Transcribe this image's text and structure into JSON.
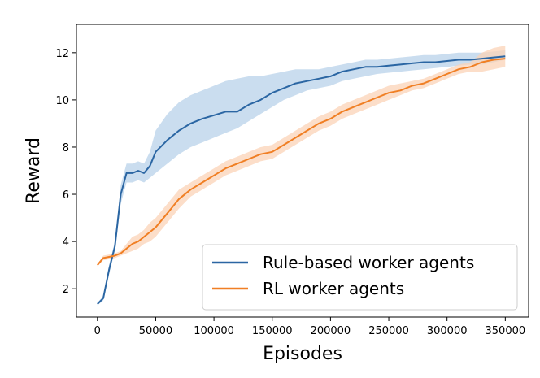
{
  "chart_data": {
    "type": "line",
    "title": "",
    "xlabel": "Episodes",
    "ylabel": "Reward",
    "xlim": [
      -18000,
      370000
    ],
    "ylim": [
      0.8,
      13.2
    ],
    "xticks": [
      0,
      50000,
      100000,
      150000,
      200000,
      250000,
      300000,
      350000
    ],
    "xtick_labels": [
      "0",
      "50000",
      "100000",
      "150000",
      "200000",
      "250000",
      "300000",
      "350000"
    ],
    "yticks": [
      2,
      4,
      6,
      8,
      10,
      12
    ],
    "ytick_labels": [
      "2",
      "4",
      "6",
      "8",
      "10",
      "12"
    ],
    "grid": false,
    "legend_position": "lower right",
    "series": [
      {
        "name": "Rule-based worker agents",
        "color": "#2b66a3",
        "fill": "#b8d2ea",
        "x": [
          0,
          5000,
          10000,
          15000,
          20000,
          25000,
          30000,
          35000,
          40000,
          45000,
          50000,
          60000,
          70000,
          80000,
          90000,
          100000,
          110000,
          120000,
          130000,
          140000,
          150000,
          160000,
          170000,
          180000,
          190000,
          200000,
          210000,
          220000,
          230000,
          240000,
          250000,
          260000,
          270000,
          280000,
          290000,
          300000,
          310000,
          320000,
          330000,
          340000,
          350000
        ],
        "values": [
          1.35,
          1.6,
          2.8,
          3.8,
          6.0,
          6.9,
          6.9,
          7.0,
          6.9,
          7.2,
          7.8,
          8.3,
          8.7,
          9.0,
          9.2,
          9.35,
          9.5,
          9.5,
          9.8,
          10.0,
          10.3,
          10.5,
          10.7,
          10.8,
          10.9,
          11.0,
          11.2,
          11.3,
          11.4,
          11.4,
          11.45,
          11.5,
          11.55,
          11.6,
          11.6,
          11.65,
          11.7,
          11.7,
          11.75,
          11.8,
          11.85
        ],
        "lower": [
          1.3,
          1.5,
          2.6,
          3.6,
          5.6,
          6.5,
          6.5,
          6.6,
          6.5,
          6.7,
          6.9,
          7.3,
          7.7,
          8.0,
          8.2,
          8.4,
          8.6,
          8.8,
          9.1,
          9.4,
          9.7,
          10.0,
          10.2,
          10.4,
          10.5,
          10.6,
          10.8,
          10.9,
          11.0,
          11.1,
          11.15,
          11.2,
          11.25,
          11.3,
          11.35,
          11.4,
          11.45,
          11.5,
          11.5,
          11.6,
          11.7
        ],
        "upper": [
          1.4,
          1.7,
          3.0,
          4.0,
          6.4,
          7.3,
          7.3,
          7.4,
          7.3,
          7.8,
          8.7,
          9.4,
          9.9,
          10.2,
          10.4,
          10.6,
          10.8,
          10.9,
          11.0,
          11.0,
          11.1,
          11.2,
          11.3,
          11.3,
          11.3,
          11.4,
          11.5,
          11.6,
          11.7,
          11.7,
          11.75,
          11.8,
          11.85,
          11.9,
          11.9,
          11.95,
          12.0,
          12.0,
          12.0,
          12.05,
          12.1
        ]
      },
      {
        "name": "RL worker agents",
        "color": "#f07f24",
        "fill": "#fbd3b7",
        "x": [
          0,
          5000,
          10000,
          15000,
          20000,
          25000,
          30000,
          35000,
          40000,
          45000,
          50000,
          60000,
          70000,
          80000,
          90000,
          100000,
          110000,
          120000,
          130000,
          140000,
          150000,
          160000,
          170000,
          180000,
          190000,
          200000,
          210000,
          220000,
          230000,
          240000,
          250000,
          260000,
          270000,
          280000,
          290000,
          300000,
          310000,
          320000,
          330000,
          340000,
          350000
        ],
        "values": [
          3.0,
          3.3,
          3.35,
          3.4,
          3.5,
          3.7,
          3.9,
          4.0,
          4.2,
          4.4,
          4.6,
          5.2,
          5.8,
          6.2,
          6.5,
          6.8,
          7.1,
          7.3,
          7.5,
          7.7,
          7.8,
          8.1,
          8.4,
          8.7,
          9.0,
          9.2,
          9.5,
          9.7,
          9.9,
          10.1,
          10.3,
          10.4,
          10.6,
          10.7,
          10.9,
          11.1,
          11.3,
          11.4,
          11.6,
          11.7,
          11.75
        ],
        "lower": [
          2.95,
          3.2,
          3.25,
          3.3,
          3.4,
          3.5,
          3.6,
          3.7,
          3.9,
          4.0,
          4.2,
          4.8,
          5.4,
          5.9,
          6.2,
          6.5,
          6.8,
          7.0,
          7.2,
          7.4,
          7.5,
          7.8,
          8.1,
          8.4,
          8.7,
          8.9,
          9.2,
          9.4,
          9.6,
          9.8,
          10.0,
          10.2,
          10.4,
          10.5,
          10.7,
          10.9,
          11.1,
          11.2,
          11.2,
          11.3,
          11.4
        ],
        "upper": [
          3.05,
          3.4,
          3.45,
          3.5,
          3.6,
          3.9,
          4.2,
          4.3,
          4.5,
          4.8,
          5.0,
          5.6,
          6.2,
          6.5,
          6.8,
          7.1,
          7.4,
          7.6,
          7.8,
          8.0,
          8.1,
          8.4,
          8.7,
          9.0,
          9.3,
          9.5,
          9.8,
          10.0,
          10.2,
          10.4,
          10.6,
          10.7,
          10.8,
          10.9,
          11.1,
          11.3,
          11.5,
          11.6,
          12.0,
          12.2,
          12.3
        ]
      }
    ]
  }
}
